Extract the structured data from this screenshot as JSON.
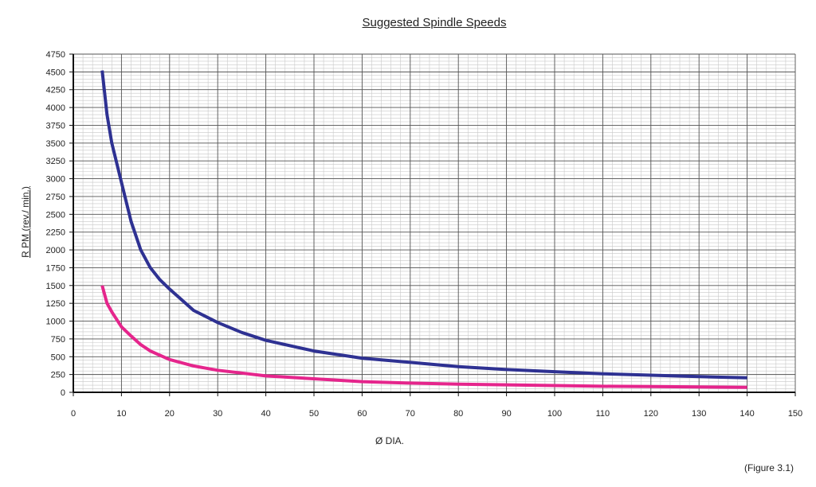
{
  "chart_data": {
    "type": "line",
    "title": "Suggested Spindle Speeds",
    "xlabel": "Ø  DIA.",
    "ylabel": "R PM  (rev./ min.)",
    "figure_label": "(Figure 3.1)",
    "xlim": [
      0,
      150
    ],
    "ylim": [
      0,
      4750
    ],
    "x_ticks": [
      0,
      10,
      20,
      30,
      40,
      50,
      60,
      70,
      80,
      90,
      100,
      110,
      120,
      130,
      140,
      150
    ],
    "y_ticks": [
      0,
      250,
      500,
      750,
      1000,
      1250,
      1500,
      1750,
      2000,
      2250,
      2500,
      2750,
      3000,
      3250,
      3500,
      3750,
      4000,
      4250,
      4500,
      4750
    ],
    "grid": true,
    "legend": "none",
    "series": [
      {
        "color": "#2e3192",
        "x": [
          6,
          7,
          8,
          10,
          12,
          14,
          16,
          18,
          20,
          25,
          30,
          35,
          40,
          50,
          60,
          70,
          80,
          90,
          100,
          110,
          120,
          130,
          140
        ],
        "y": [
          4520,
          3900,
          3500,
          2950,
          2400,
          2000,
          1750,
          1580,
          1450,
          1150,
          980,
          840,
          730,
          580,
          480,
          420,
          360,
          320,
          290,
          260,
          240,
          220,
          205
        ]
      },
      {
        "color": "#e5258c",
        "x": [
          6,
          7,
          8,
          10,
          12,
          14,
          16,
          18,
          20,
          25,
          30,
          35,
          40,
          50,
          60,
          70,
          80,
          90,
          100,
          110,
          120,
          130,
          140
        ],
        "y": [
          1500,
          1250,
          1130,
          920,
          790,
          670,
          580,
          520,
          460,
          370,
          310,
          270,
          230,
          190,
          150,
          130,
          115,
          105,
          95,
          85,
          80,
          75,
          70
        ]
      }
    ]
  }
}
